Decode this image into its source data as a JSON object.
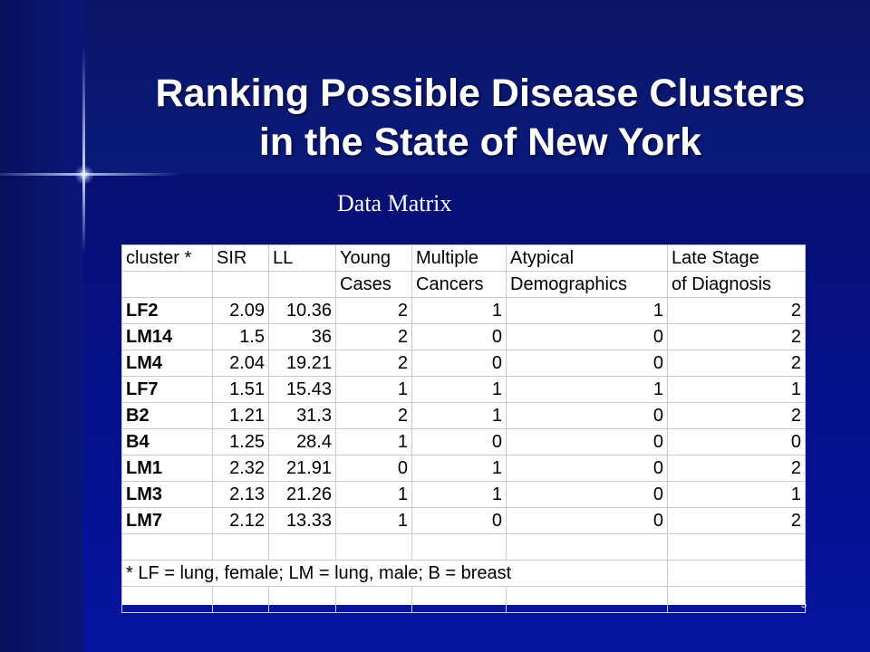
{
  "slide": {
    "title_line1": "Ranking Possible Disease Clusters",
    "title_line2": "in the State of New York",
    "subtitle": "Data Matrix",
    "page_number": "5"
  },
  "table": {
    "header_row1": [
      "cluster *",
      "SIR",
      "LL",
      "Young",
      "Multiple",
      "Atypical",
      "Late Stage"
    ],
    "header_row2": [
      "",
      "",
      "",
      "Cases",
      "Cancers",
      "Demographics",
      "of Diagnosis"
    ],
    "rows": [
      [
        "LF2",
        "2.09",
        "10.36",
        "2",
        "1",
        "1",
        "2"
      ],
      [
        "LM14",
        "1.5",
        "36",
        "2",
        "0",
        "0",
        "2"
      ],
      [
        "LM4",
        "2.04",
        "19.21",
        "2",
        "0",
        "0",
        "2"
      ],
      [
        "LF7",
        "1.51",
        "15.43",
        "1",
        "1",
        "1",
        "1"
      ],
      [
        "B2",
        "1.21",
        "31.3",
        "2",
        "1",
        "0",
        "2"
      ],
      [
        "B4",
        "1.25",
        "28.4",
        "1",
        "0",
        "0",
        "0"
      ],
      [
        "LM1",
        "2.32",
        "21.91",
        "0",
        "1",
        "0",
        "2"
      ],
      [
        "LM3",
        "2.13",
        "21.26",
        "1",
        "1",
        "0",
        "1"
      ],
      [
        "LM7",
        "2.12",
        "13.33",
        "1",
        "0",
        "0",
        "2"
      ]
    ],
    "footnote": "* LF = lung, female; LM = lung, male; B = breast"
  }
}
